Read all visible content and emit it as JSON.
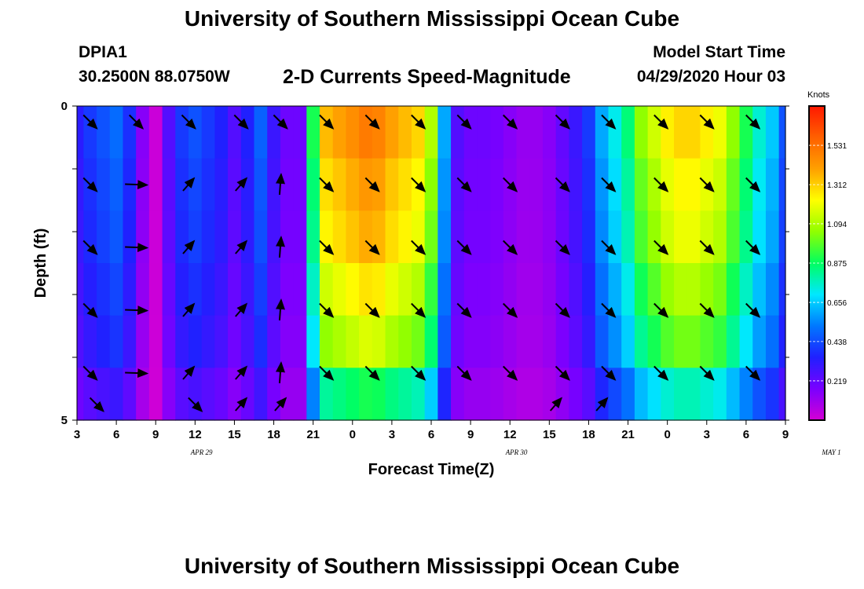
{
  "header": {
    "title": "University of Southern Mississippi Ocean Cube",
    "station": "DPIA1",
    "coords": "30.2500N 88.0750W",
    "subtitle": "2-D Currents Speed-Magnitude",
    "model_start_label": "Model Start Time",
    "model_start_value": "04/29/2020 Hour 03"
  },
  "footer": {
    "title": "University of Southern Mississippi Ocean Cube"
  },
  "chart_data": {
    "type": "heatmap",
    "title": "2-D Currents Speed-Magnitude",
    "xlabel": "Forecast Time(Z)",
    "ylabel": "Depth (ft)",
    "x_ticks": [
      "3",
      "6",
      "9",
      "12",
      "15",
      "18",
      "21",
      "0",
      "3",
      "6",
      "9",
      "12",
      "15",
      "18",
      "21",
      "0",
      "3",
      "6",
      "9"
    ],
    "date_labels": [
      {
        "text": "APR 29",
        "hour": 12.5
      },
      {
        "text": "APR 30",
        "hour": 36.5
      },
      {
        "text": "MAY 1",
        "hour": 60.5
      }
    ],
    "y_ticks": [
      "0",
      "5"
    ],
    "ylim": [
      0,
      5
    ],
    "xlim_hours": [
      3,
      57
    ],
    "colorbar": {
      "label": "Knots",
      "ticks": [
        "1.531",
        "1.312",
        "1.094",
        "0.875",
        "0.656",
        "0.438",
        "0.219"
      ],
      "range": [
        0,
        1.75
      ],
      "colors": [
        "#d400d4",
        "#7a00ff",
        "#2020ff",
        "#0078ff",
        "#00e8ff",
        "#00ff60",
        "#90ff00",
        "#ffff00",
        "#ffa000",
        "#ff6000",
        "#ff1800"
      ]
    },
    "speed_profile_knots": [
      [
        3,
        0.33
      ],
      [
        4,
        0.4
      ],
      [
        5,
        0.45
      ],
      [
        6,
        0.5
      ],
      [
        7,
        0.38
      ],
      [
        8,
        0.15
      ],
      [
        9,
        0.02
      ],
      [
        10,
        0.25
      ],
      [
        11,
        0.4
      ],
      [
        12,
        0.45
      ],
      [
        13,
        0.4
      ],
      [
        14,
        0.35
      ],
      [
        15,
        0.25
      ],
      [
        16,
        0.35
      ],
      [
        17,
        0.48
      ],
      [
        18,
        0.3
      ],
      [
        19,
        0.2
      ],
      [
        20,
        0.2
      ],
      [
        21,
        0.9
      ],
      [
        22,
        1.35
      ],
      [
        23,
        1.4
      ],
      [
        24,
        1.45
      ],
      [
        25,
        1.5
      ],
      [
        26,
        1.48
      ],
      [
        27,
        1.4
      ],
      [
        28,
        1.35
      ],
      [
        29,
        1.3
      ],
      [
        30,
        1.1
      ],
      [
        31,
        0.6
      ],
      [
        32,
        0.25
      ],
      [
        33,
        0.2
      ],
      [
        34,
        0.2
      ],
      [
        35,
        0.18
      ],
      [
        36,
        0.15
      ],
      [
        37,
        0.12
      ],
      [
        38,
        0.12
      ],
      [
        39,
        0.15
      ],
      [
        40,
        0.22
      ],
      [
        41,
        0.3
      ],
      [
        42,
        0.4
      ],
      [
        43,
        0.6
      ],
      [
        44,
        0.72
      ],
      [
        45,
        0.85
      ],
      [
        46,
        1.05
      ],
      [
        47,
        1.15
      ],
      [
        48,
        1.25
      ],
      [
        49,
        1.3
      ],
      [
        50,
        1.3
      ],
      [
        51,
        1.25
      ],
      [
        52,
        1.2
      ],
      [
        53,
        1.05
      ],
      [
        54,
        0.9
      ],
      [
        55,
        0.75
      ],
      [
        56,
        0.65
      ],
      [
        57,
        0.45
      ]
    ],
    "depth_factors": [
      1.0,
      0.95,
      0.92,
      0.85,
      0.78,
      0.6
    ],
    "arrow_hours": [
      4,
      7.5,
      11.5,
      15.5,
      18.5,
      22,
      25.5,
      29,
      32.5,
      36,
      40,
      43.5,
      47.5,
      51,
      54.5
    ],
    "arrow_depths_ft": [
      0.25,
      1.25,
      2.25,
      3.25,
      4.25
    ],
    "arrows_extra": [
      {
        "hour": 4.5,
        "depth_ft": 4.75,
        "dir": "se"
      },
      {
        "hour": 12,
        "depth_ft": 4.75,
        "dir": "se"
      },
      {
        "hour": 15.5,
        "depth_ft": 4.75,
        "dir": "ne"
      },
      {
        "hour": 18.5,
        "depth_ft": 4.75,
        "dir": "ne"
      },
      {
        "hour": 39.5,
        "depth_ft": 4.75,
        "dir": "ne"
      },
      {
        "hour": 43,
        "depth_ft": 4.75,
        "dir": "ne"
      }
    ]
  }
}
